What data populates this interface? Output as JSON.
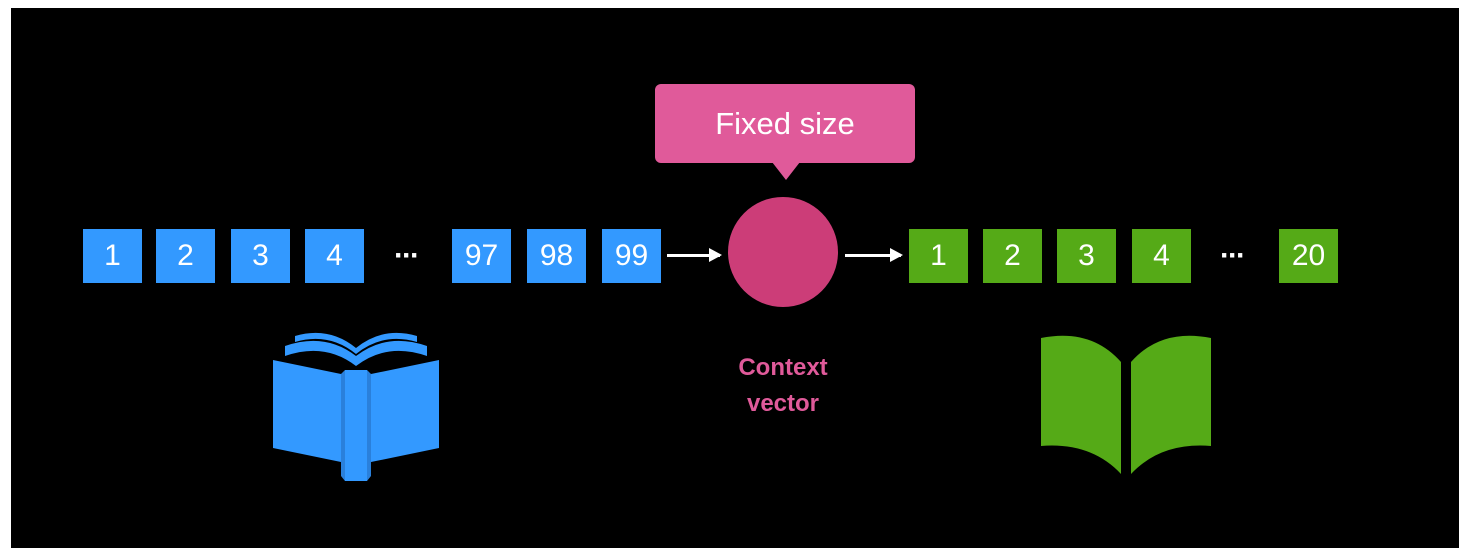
{
  "diagram": {
    "input_tokens": [
      "1",
      "2",
      "3",
      "4",
      "97",
      "98",
      "99"
    ],
    "input_ellipsis": "···",
    "callout": "Fixed size",
    "context_label_line1": "Context",
    "context_label_line2": "vector",
    "output_tokens": [
      "1",
      "2",
      "3",
      "4",
      "20"
    ],
    "output_ellipsis": "···"
  },
  "colors": {
    "background": "#000000",
    "input_blue": "#3399ff",
    "output_green": "#55aa17",
    "context_circle": "#cc3d78",
    "callout_pink": "#e05a9a"
  },
  "icons": {
    "source_book": "book-icon",
    "target_book": "open-book-icon"
  }
}
